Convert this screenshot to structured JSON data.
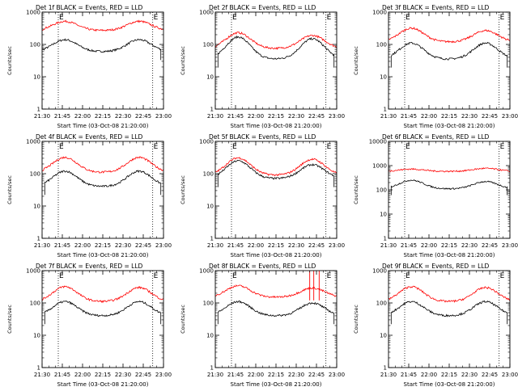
{
  "panel_titles": [
    "Det 1f BLACK = Events, RED = LLD",
    "Det 2f BLACK = Events, RED = LLD",
    "Det 3f BLACK = Events, RED = LLD",
    "Det 4f BLACK = Events, RED = LLD",
    "Det 5f BLACK = Events, RED = LLD",
    "Det 6f BLACK = Events, RED = LLD",
    "Det 7f BLACK = Events, RED = LLD",
    "Det 8f BLACK = Events, RED = LLD",
    "Det 9f BLACK = Events, RED = LLD"
  ],
  "ylabel": "Counts/sec",
  "xlabel": "Start Time (03-Oct-08 21:20:00)",
  "colors": {
    "events": "#000000",
    "lld": "#ff0000",
    "axes": "#000000"
  },
  "marker_labels": [
    "E",
    "E"
  ],
  "chart_data": [
    {
      "type": "line",
      "title": "Det 1f BLACK = Events, RED = LLD",
      "ylog": true,
      "ylim": [
        1,
        1000
      ],
      "ytick_labels": [
        "1",
        "10",
        "100",
        "1000"
      ],
      "xtick_labels": [
        "21:30",
        "21:45",
        "22:00",
        "22:15",
        "22:30",
        "22:45",
        "23:00"
      ],
      "xlim_min": [
        10,
        100
      ],
      "dotted_lines_min": [
        22,
        92
      ],
      "series": [
        {
          "name": "Events",
          "start": 3,
          "end": 98,
          "peak1": 140,
          "peak2": 140,
          "base": 60
        },
        {
          "name": "LLD",
          "start": 0,
          "end": 108,
          "peak1": 520,
          "peak2": 520,
          "base": 270,
          "edge": 210
        }
      ]
    },
    {
      "type": "line",
      "title": "Det 2f BLACK = Events, RED = LLD",
      "ylog": true,
      "ylim": [
        1,
        1000
      ],
      "ytick_labels": [
        "1",
        "10",
        "100",
        "1000"
      ],
      "xtick_labels": [
        "21:30",
        "21:45",
        "22:00",
        "22:15",
        "22:30",
        "22:45",
        "23:00"
      ],
      "xlim_min": [
        10,
        100
      ],
      "dotted_lines_min": [
        22,
        92
      ],
      "series": [
        {
          "name": "Events",
          "start": 12,
          "end": 98,
          "peak1": 170,
          "peak2": 150,
          "base": 35
        },
        {
          "name": "LLD",
          "start": 0,
          "end": 108,
          "peak1": 230,
          "peak2": 190,
          "base": 75,
          "edge": 75
        }
      ]
    },
    {
      "type": "line",
      "title": "Det 3f BLACK = Events, RED = LLD",
      "ylog": true,
      "ylim": [
        1,
        1000
      ],
      "ytick_labels": [
        "1",
        "10",
        "100",
        "1000"
      ],
      "xtick_labels": [
        "21:30",
        "21:45",
        "22:00",
        "22:15",
        "22:30",
        "22:45",
        "23:00"
      ],
      "xlim_min": [
        10,
        100
      ],
      "dotted_lines_min": [
        22,
        92
      ],
      "series": [
        {
          "name": "Events",
          "start": 12,
          "end": 98,
          "peak1": 110,
          "peak2": 110,
          "base": 35
        },
        {
          "name": "LLD",
          "start": 0,
          "end": 108,
          "peak1": 320,
          "peak2": 270,
          "base": 120,
          "edge": 140
        }
      ]
    },
    {
      "type": "line",
      "title": "Det 4f BLACK = Events, RED = LLD",
      "ylog": true,
      "ylim": [
        1,
        1000
      ],
      "ytick_labels": [
        "1",
        "10",
        "100",
        "1000"
      ],
      "xtick_labels": [
        "21:30",
        "21:45",
        "22:00",
        "22:15",
        "22:30",
        "22:45",
        "23:00"
      ],
      "xlim_min": [
        10,
        100
      ],
      "dotted_lines_min": [
        22,
        92
      ],
      "series": [
        {
          "name": "Events",
          "start": 12,
          "end": 98,
          "peak1": 120,
          "peak2": 120,
          "base": 40
        },
        {
          "name": "LLD",
          "start": 0,
          "end": 108,
          "peak1": 320,
          "peak2": 320,
          "base": 110,
          "edge": 100
        }
      ]
    },
    {
      "type": "line",
      "title": "Det 5f BLACK = Events, RED = LLD",
      "ylog": true,
      "ylim": [
        1,
        1000
      ],
      "ytick_labels": [
        "1",
        "10",
        "100",
        "1000"
      ],
      "xtick_labels": [
        "21:30",
        "21:45",
        "22:00",
        "22:15",
        "22:30",
        "22:45",
        "23:00"
      ],
      "xlim_min": [
        10,
        100
      ],
      "dotted_lines_min": [
        22,
        92
      ],
      "series": [
        {
          "name": "Events",
          "start": 12,
          "end": 98,
          "peak1": 250,
          "peak2": 190,
          "base": 70
        },
        {
          "name": "LLD",
          "start": 0,
          "end": 108,
          "peak1": 310,
          "peak2": 280,
          "base": 90,
          "edge": 110
        }
      ]
    },
    {
      "type": "line",
      "title": "Det 6f BLACK = Events, RED = LLD",
      "ylog": true,
      "ylim": [
        1,
        10000
      ],
      "ytick_labels": [
        "1",
        "10",
        "100",
        "1000",
        "10000"
      ],
      "xtick_labels": [
        "21:30",
        "21:45",
        "22:00",
        "22:15",
        "22:30",
        "22:45",
        "23:00"
      ],
      "xlim_min": [
        10,
        100
      ],
      "dotted_lines_min": [
        22,
        92
      ],
      "series": [
        {
          "name": "Events",
          "start": 12,
          "end": 98,
          "peak1": 250,
          "peak2": 220,
          "base": 110
        },
        {
          "name": "LLD",
          "start": 0,
          "end": 108,
          "peak1": 720,
          "peak2": 770,
          "base": 580,
          "edge": 580
        }
      ]
    },
    {
      "type": "line",
      "title": "Det 7f BLACK = Events, RED = LLD",
      "ylog": true,
      "ylim": [
        1,
        1000
      ],
      "ytick_labels": [
        "1",
        "10",
        "100",
        "1000"
      ],
      "xtick_labels": [
        "21:30",
        "21:45",
        "22:00",
        "22:15",
        "22:30",
        "22:45",
        "23:00"
      ],
      "xlim_min": [
        10,
        100
      ],
      "dotted_lines_min": [
        22,
        92
      ],
      "series": [
        {
          "name": "Events",
          "start": 12,
          "end": 98,
          "peak1": 110,
          "peak2": 110,
          "base": 40
        },
        {
          "name": "LLD",
          "start": 0,
          "end": 108,
          "peak1": 320,
          "peak2": 300,
          "base": 110,
          "edge": 110
        }
      ]
    },
    {
      "type": "line",
      "title": "Det 8f BLACK = Events, RED = LLD",
      "ylog": true,
      "ylim": [
        1,
        1000
      ],
      "ytick_labels": [
        "1",
        "10",
        "100",
        "1000"
      ],
      "xtick_labels": [
        "21:30",
        "21:45",
        "22:00",
        "22:15",
        "22:30",
        "22:45",
        "23:00"
      ],
      "xlim_min": [
        10,
        100
      ],
      "dotted_lines_min": [
        22,
        92
      ],
      "series": [
        {
          "name": "Events",
          "start": 12,
          "end": 98,
          "peak1": 110,
          "peak2": 100,
          "base": 40
        },
        {
          "name": "LLD",
          "start": 0,
          "end": 108,
          "peak1": 340,
          "peak2": 290,
          "base": 150,
          "edge": 160
        }
      ],
      "spikes_min": [
        80,
        83,
        87
      ]
    },
    {
      "type": "line",
      "title": "Det 9f BLACK = Events, RED = LLD",
      "ylog": true,
      "ylim": [
        1,
        1000
      ],
      "ytick_labels": [
        "1",
        "10",
        "100",
        "1000"
      ],
      "xtick_labels": [
        "21:30",
        "21:45",
        "22:00",
        "22:15",
        "22:30",
        "22:45",
        "23:00"
      ],
      "xlim_min": [
        10,
        100
      ],
      "dotted_lines_min": [
        22,
        92
      ],
      "series": [
        {
          "name": "Events",
          "start": 12,
          "end": 98,
          "peak1": 110,
          "peak2": 110,
          "base": 40
        },
        {
          "name": "LLD",
          "start": 0,
          "end": 108,
          "peak1": 320,
          "peak2": 300,
          "base": 110,
          "edge": 110
        }
      ]
    }
  ]
}
